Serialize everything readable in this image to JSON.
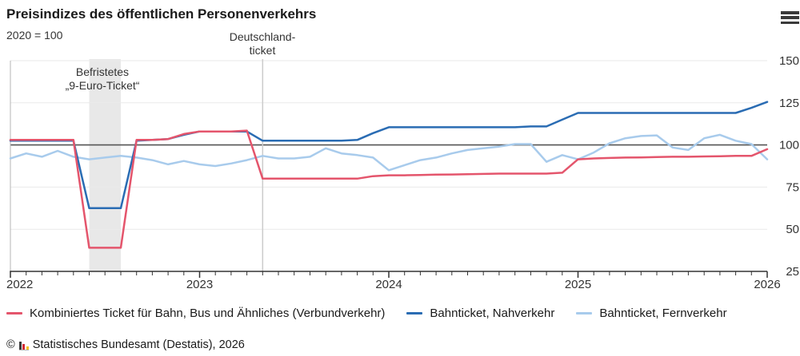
{
  "header": {
    "title": "Preisindizes des öffentlichen Personenverkehrs",
    "subtitle": "2020 = 100"
  },
  "annotations": {
    "nine_euro": {
      "line1": "Befristetes",
      "line2": "„9-Euro-Ticket“"
    },
    "dticket": {
      "line1": "Deutschland-",
      "line2": "ticket"
    }
  },
  "chart_data": {
    "type": "line",
    "title": "Preisindizes des öffentlichen Personenverkehrs",
    "subtitle": "2020 = 100",
    "x_monthly_start": "2022-01",
    "x_monthly_end": "2026-01",
    "ylim": [
      25,
      150
    ],
    "y_ticks": [
      150,
      125,
      100,
      75,
      50,
      25
    ],
    "reference_line": 100,
    "x_ticks": [
      {
        "label": "2022",
        "month": 0
      },
      {
        "label": "2023",
        "month": 12
      },
      {
        "label": "2024",
        "month": 24
      },
      {
        "label": "2025",
        "month": 36
      },
      {
        "label": "2026",
        "month": 48
      }
    ],
    "highlight_band": {
      "label": "Befristetes „9-Euro-Ticket“",
      "from_month": 5,
      "to_month": 7,
      "from": "2022-06",
      "to": "2022-08"
    },
    "event_line": {
      "label": "Deutschlandticket",
      "month": 16,
      "at": "2023-05"
    },
    "colors": {
      "band": "#e8e8e8",
      "grid": "#eaeaea",
      "reference": "#555555",
      "axis": "#333333",
      "event": "#cccccc",
      "plot_left_edge": "#b5b5b5"
    },
    "series": [
      {
        "id": "verbundverkehr",
        "name": "Kombiniertes Ticket für Bahn, Bus und Ähnliches (Verbundverkehr)",
        "color": "#e4556c",
        "values": [
          103,
          103,
          103,
          103,
          103,
          39,
          39,
          39,
          103,
          103,
          103.5,
          106.5,
          108,
          108,
          108,
          108.5,
          80,
          80,
          80,
          80,
          80,
          80,
          80,
          81.5,
          82,
          82,
          82.2,
          82.4,
          82.5,
          82.6,
          82.8,
          83,
          83,
          83,
          83,
          83.5,
          91.5,
          92,
          92.3,
          92.5,
          92.6,
          92.8,
          93,
          93,
          93.2,
          93.3,
          93.5,
          93.5,
          97.5
        ]
      },
      {
        "id": "nahverkehr",
        "name": "Bahnticket, Nahverkehr",
        "color": "#2a6cb3",
        "values": [
          102.5,
          102.5,
          102.5,
          102.5,
          102.5,
          62.5,
          62.5,
          62.5,
          102.5,
          103,
          103.5,
          106,
          108,
          108,
          108,
          108,
          102.5,
          102.5,
          102.5,
          102.5,
          102.5,
          102.5,
          103,
          107,
          110.5,
          110.5,
          110.5,
          110.5,
          110.5,
          110.5,
          110.5,
          110.5,
          110.5,
          111,
          111,
          115,
          119,
          119,
          119,
          119,
          119,
          119,
          119,
          119,
          119,
          119,
          119,
          122,
          125.5
        ]
      },
      {
        "id": "fernverkehr",
        "name": "Bahnticket, Fernverkehr",
        "color": "#a8cbec",
        "values": [
          92,
          95,
          93,
          96.5,
          93,
          91.5,
          92.5,
          93.5,
          92.5,
          91,
          88.5,
          90.5,
          88.5,
          87.5,
          89,
          91,
          93.5,
          92,
          92,
          93,
          98,
          95,
          94,
          92.5,
          85,
          88,
          91,
          92.5,
          95,
          97,
          98,
          99,
          100.5,
          100.5,
          90,
          94,
          91.5,
          95.5,
          101,
          104,
          105.3,
          105.7,
          98.5,
          97,
          104,
          106,
          102.5,
          100.5,
          91.5
        ]
      }
    ],
    "legend_position": "bottom"
  },
  "footer": {
    "copyright": "©",
    "text": "Statistisches Bundesamt (Destatis), 2026"
  }
}
